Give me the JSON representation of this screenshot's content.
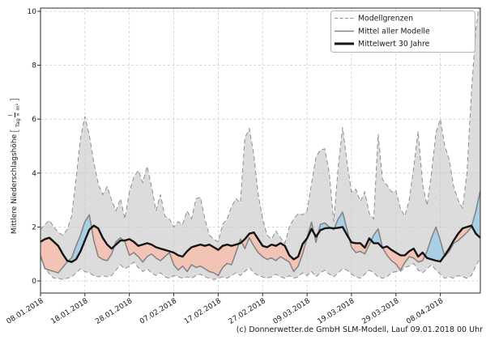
{
  "figure": {
    "background": "#ffffff"
  },
  "caption": "(c) Donnerwetter.de GmbH SLM-Modell, Lauf 09.01.2018 00 Uhr",
  "axes": {
    "y_label": "Mittlere Niederschlagshöhe",
    "y_unit_numerator": "l",
    "y_unit_denominator": "Tag × m²"
  },
  "legend": {
    "items": [
      {
        "label": "Modellgrenzen",
        "style": "dashed",
        "color": "#8f8f8f"
      },
      {
        "label": "Mittel aller Modelle",
        "style": "solid",
        "color": "#868686"
      },
      {
        "label": "Mittelwert 30 Jahre",
        "style": "solid-bold",
        "color": "#141414"
      }
    ]
  },
  "chart_data": {
    "type": "line",
    "title": "",
    "xlabel": "",
    "ylabel": "Mittlere Niederschlagshöhe [l/(Tag × m²)]",
    "grid": true,
    "legend_position": "top-right",
    "x_unit": "Tage ab 08.01.2018",
    "x_range_days": [
      0,
      99
    ],
    "y_range": [
      -0.45,
      10.12
    ],
    "y_ticks": [
      0,
      2,
      4,
      6,
      8,
      10
    ],
    "x_tick_days": [
      0,
      10,
      20,
      30,
      40,
      50,
      60,
      70,
      80,
      90
    ],
    "x_tick_labels": [
      "08.01.2018",
      "18.01.2018",
      "28.01.2018",
      "07.02.2018",
      "17.02.2018",
      "27.02.2018",
      "09.03.2018",
      "19.03.2018",
      "29.03.2018",
      "08.04.2018"
    ],
    "colors": {
      "band_fill": "#dcdcdc",
      "band_edge": "#8f8f8f",
      "above_normal_fill": "#a9cfe5",
      "below_normal_fill": "#f3c4b6",
      "model_mean_line": "#868686",
      "mean30_line": "#141414",
      "grid": "#cbcbcb",
      "spine": "#2b2b2b"
    },
    "series": [
      {
        "name": "Modellgrenzen (obere Grenze)",
        "style": "dashed",
        "color": "#8f8f8f",
        "values": [
          1.9,
          2.1,
          2.25,
          2.0,
          1.8,
          1.7,
          1.9,
          2.4,
          3.8,
          5.3,
          6.1,
          5.4,
          4.4,
          3.6,
          3.2,
          3.5,
          3.0,
          2.6,
          3.05,
          2.3,
          3.3,
          3.85,
          4.1,
          3.65,
          4.25,
          3.5,
          2.6,
          3.2,
          2.4,
          2.3,
          2.0,
          2.2,
          2.1,
          2.6,
          2.3,
          3.05,
          3.1,
          2.3,
          1.7,
          1.55,
          1.45,
          2.1,
          2.3,
          2.75,
          3.05,
          2.9,
          5.3,
          5.65,
          4.7,
          3.2,
          2.3,
          1.7,
          1.55,
          1.85,
          1.6,
          1.4,
          2.0,
          2.3,
          2.5,
          2.45,
          2.6,
          3.6,
          4.6,
          4.85,
          4.9,
          4.0,
          2.2,
          4.2,
          5.7,
          4.4,
          3.3,
          3.4,
          2.95,
          3.3,
          2.5,
          2.3,
          5.45,
          3.75,
          3.55,
          3.3,
          3.35,
          2.7,
          2.4,
          3.0,
          4.2,
          5.55,
          3.6,
          2.8,
          4.0,
          5.5,
          6.0,
          5.0,
          4.5,
          3.5,
          3.0,
          2.7,
          4.0,
          7.0,
          9.3,
          10.6
        ]
      },
      {
        "name": "Modellgrenzen (untere Grenze)",
        "style": "dashed",
        "color": "#8f8f8f",
        "values": [
          0.85,
          0.5,
          0.25,
          0.1,
          0.1,
          0.05,
          0.1,
          0.15,
          0.3,
          0.45,
          0.35,
          0.3,
          0.2,
          0.15,
          0.2,
          0.15,
          0.2,
          0.4,
          0.6,
          0.45,
          0.55,
          0.7,
          0.5,
          0.35,
          0.45,
          0.3,
          0.2,
          0.3,
          0.15,
          0.1,
          0.2,
          0.15,
          0.1,
          0.15,
          0.1,
          0.2,
          0.25,
          0.15,
          0.1,
          0.05,
          0.1,
          0.15,
          0.1,
          0.2,
          0.3,
          0.2,
          0.35,
          0.5,
          0.3,
          0.2,
          0.15,
          0.1,
          0.15,
          0.25,
          0.15,
          0.1,
          0.2,
          0.1,
          0.15,
          0.3,
          0.2,
          0.35,
          0.15,
          0.3,
          0.4,
          0.25,
          0.15,
          0.3,
          0.45,
          0.4,
          0.25,
          0.15,
          0.1,
          0.25,
          0.4,
          0.3,
          0.15,
          0.1,
          0.15,
          0.3,
          0.35,
          0.35,
          0.5,
          0.55,
          0.65,
          0.4,
          0.3,
          0.45,
          0.6,
          0.4,
          0.25,
          0.1,
          0.15,
          0.1,
          0.2,
          0.15,
          0.1,
          0.2,
          0.55,
          0.85
        ]
      },
      {
        "name": "Mittel aller Modelle",
        "style": "solid",
        "color": "#868686",
        "values": [
          0.95,
          0.45,
          0.4,
          0.35,
          0.3,
          0.5,
          0.7,
          0.85,
          1.3,
          1.7,
          2.2,
          2.45,
          1.5,
          0.9,
          0.8,
          0.75,
          1.0,
          1.45,
          1.6,
          1.45,
          0.95,
          1.05,
          0.9,
          0.7,
          0.9,
          1.0,
          0.85,
          0.75,
          0.9,
          1.05,
          0.6,
          0.4,
          0.55,
          0.35,
          0.6,
          0.5,
          0.55,
          0.45,
          0.35,
          0.3,
          0.2,
          0.5,
          0.65,
          0.6,
          1.05,
          1.55,
          1.2,
          1.6,
          1.3,
          1.05,
          0.9,
          0.8,
          0.85,
          0.75,
          0.9,
          0.8,
          0.7,
          0.35,
          0.55,
          1.0,
          1.6,
          2.18,
          1.43,
          2.1,
          2.15,
          2.0,
          1.9,
          2.3,
          2.55,
          1.9,
          1.25,
          1.05,
          1.1,
          1.0,
          1.35,
          1.7,
          1.93,
          1.23,
          0.95,
          0.75,
          0.63,
          0.4,
          0.68,
          0.9,
          0.85,
          0.7,
          0.75,
          1.1,
          1.6,
          2.0,
          1.5,
          0.9,
          1.1,
          1.4,
          1.5,
          1.65,
          1.8,
          2.0,
          2.6,
          3.35
        ]
      },
      {
        "name": "Mittelwert 30 Jahre",
        "style": "solid-bold",
        "color": "#141414",
        "values": [
          1.45,
          1.55,
          1.6,
          1.45,
          1.3,
          1.0,
          0.75,
          0.7,
          0.8,
          1.1,
          1.5,
          1.9,
          2.05,
          1.95,
          1.6,
          1.35,
          1.2,
          1.35,
          1.5,
          1.5,
          1.55,
          1.45,
          1.3,
          1.35,
          1.4,
          1.35,
          1.25,
          1.2,
          1.15,
          1.1,
          1.05,
          0.95,
          0.9,
          1.1,
          1.25,
          1.3,
          1.35,
          1.3,
          1.35,
          1.25,
          1.15,
          1.3,
          1.35,
          1.3,
          1.35,
          1.4,
          1.55,
          1.75,
          1.8,
          1.55,
          1.3,
          1.25,
          1.35,
          1.3,
          1.4,
          1.3,
          0.95,
          0.8,
          0.9,
          1.37,
          1.58,
          1.93,
          1.64,
          1.88,
          1.95,
          1.97,
          1.95,
          1.97,
          2.0,
          1.7,
          1.43,
          1.4,
          1.4,
          1.23,
          1.58,
          1.4,
          1.4,
          1.23,
          1.28,
          1.15,
          1.05,
          0.95,
          0.95,
          1.1,
          1.2,
          0.9,
          1.05,
          0.85,
          0.8,
          0.75,
          0.72,
          0.95,
          1.2,
          1.5,
          1.75,
          1.95,
          2.0,
          2.05,
          1.75,
          1.6
        ]
      }
    ]
  }
}
